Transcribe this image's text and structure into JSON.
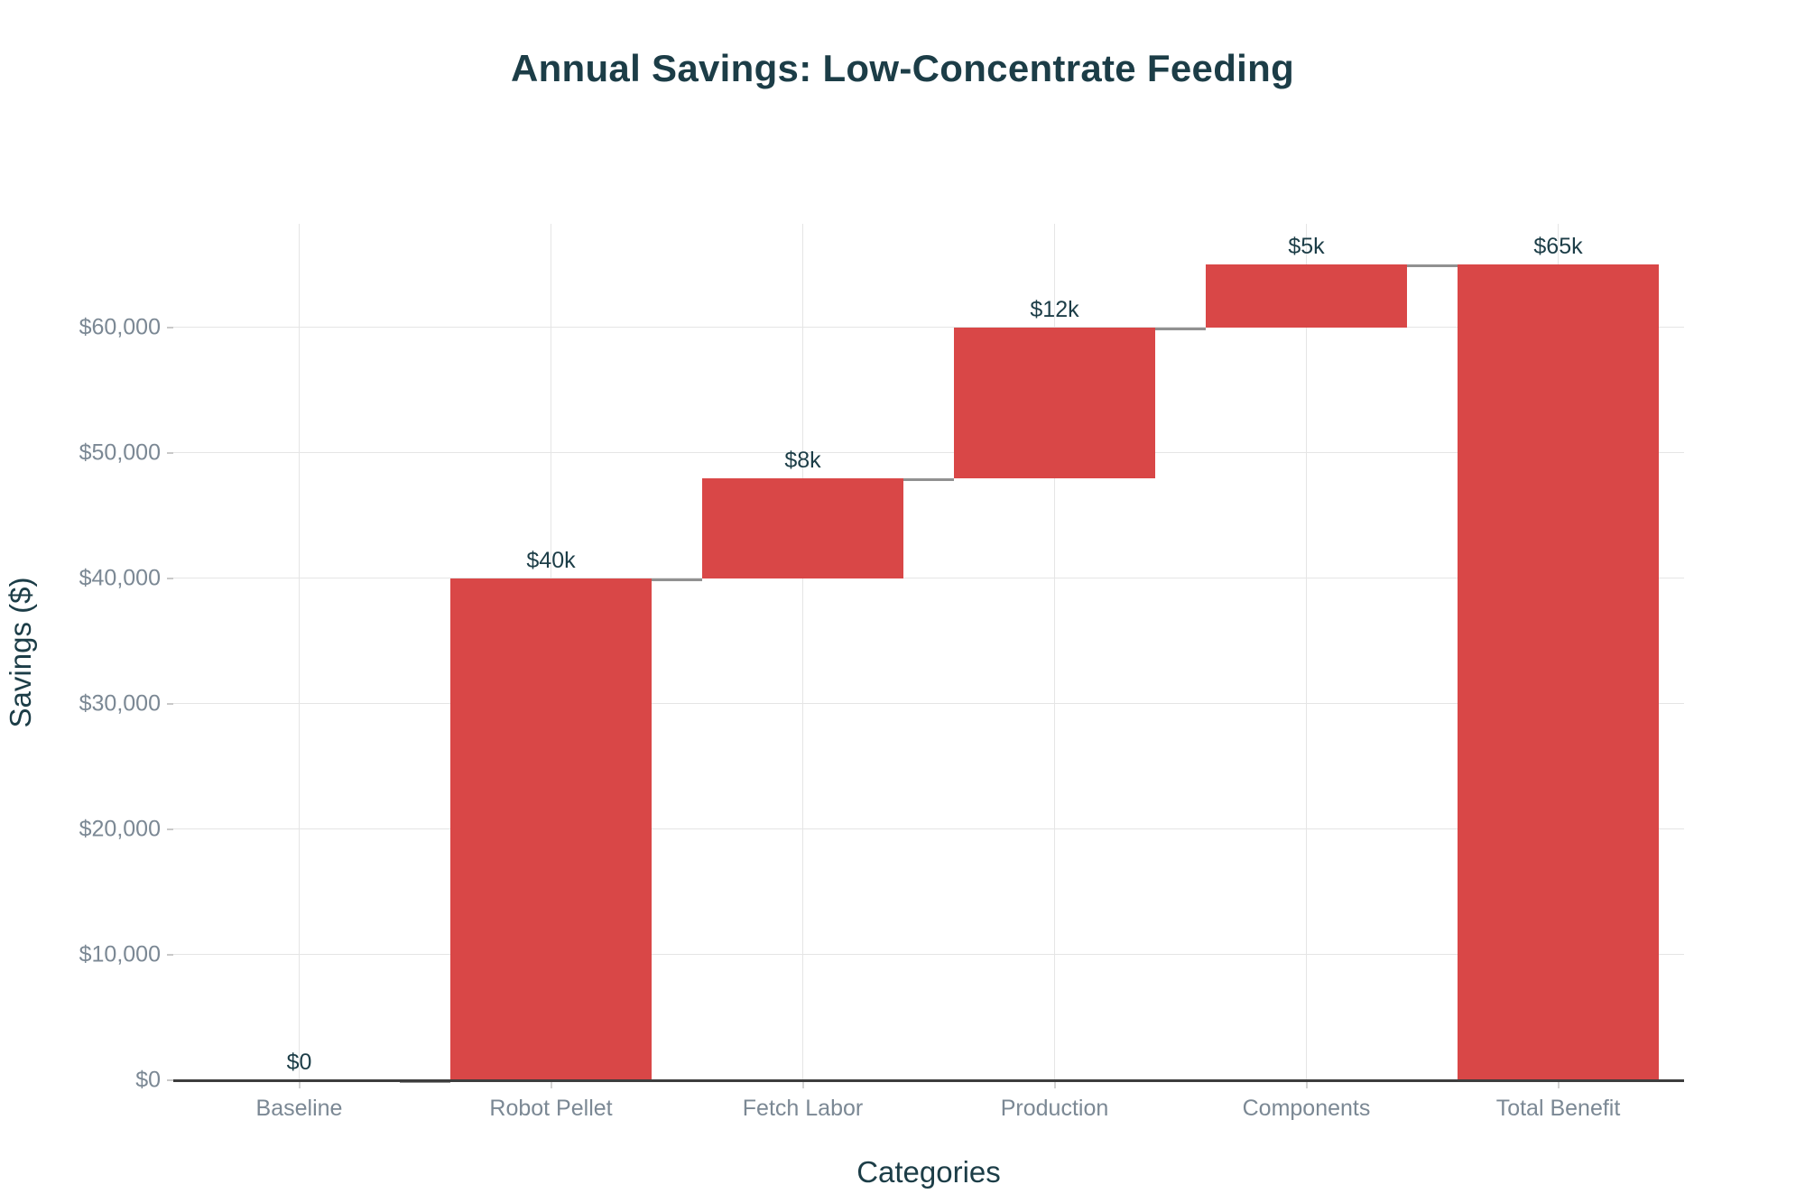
{
  "chart_data": {
    "type": "bar",
    "subtype": "waterfall",
    "title": "Annual Savings: Low-Concentrate Feeding",
    "xlabel": "Categories",
    "ylabel": "Savings ($)",
    "categories": [
      "Baseline",
      "Robot Pellet",
      "Fetch Labor",
      "Production",
      "Components",
      "Total Benefit"
    ],
    "series": [
      {
        "name": "Annual Savings",
        "measure": [
          "absolute",
          "relative",
          "relative",
          "relative",
          "relative",
          "total"
        ],
        "values": [
          0,
          40000,
          8000,
          12000,
          5000,
          65000
        ],
        "cumulative": [
          0,
          40000,
          48000,
          60000,
          65000,
          65000
        ],
        "bar_labels": [
          "$0",
          "$40k",
          "$8k",
          "$12k",
          "$5k",
          "$65k"
        ]
      }
    ],
    "ylim": [
      0,
      68250
    ],
    "yticks": [
      {
        "value": 0,
        "label": "$0"
      },
      {
        "value": 10000,
        "label": "$10,000"
      },
      {
        "value": 20000,
        "label": "$20,000"
      },
      {
        "value": 30000,
        "label": "$30,000"
      },
      {
        "value": 40000,
        "label": "$40,000"
      },
      {
        "value": 50000,
        "label": "$50,000"
      },
      {
        "value": 60000,
        "label": "$60,000"
      }
    ],
    "grid": true,
    "legend": false,
    "bar_width_fraction": 0.8,
    "colors": {
      "bar": "#D94747",
      "connector": "#919191",
      "gridline": "#E5E5E5",
      "axis_line": "#3D3D3D",
      "tick_text": "#7B8894",
      "title_text": "#1C3D47",
      "background": "#FFFFFF"
    }
  }
}
